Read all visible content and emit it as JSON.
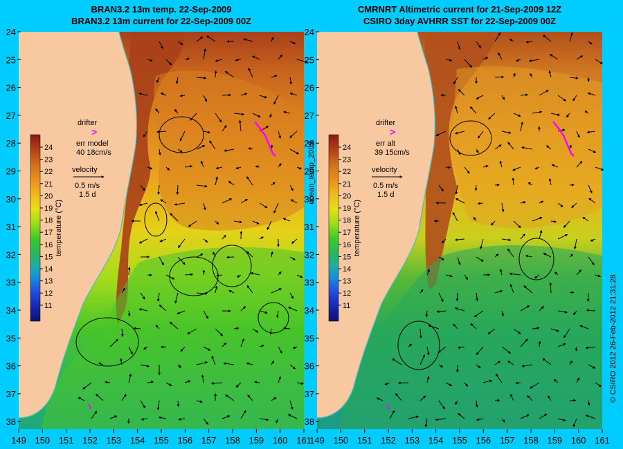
{
  "left_panel": {
    "title_line1": "BRAN3.2 13m temp. 22-Sep-2009",
    "title_line2": "BRAN3.2 13m current for 22-Sep-2009 00Z",
    "err_label": "err model",
    "err_value": "40 18cm/s"
  },
  "right_panel": {
    "title_line1": "CMRNRT Altimetric current for 21-Sep-2009 12Z",
    "title_line2": "CSIRO 3day AVHRR SST for 22-Sep-2009 00Z",
    "err_label": "err alt",
    "err_value": "39 15cm/s"
  },
  "legend": {
    "drifter_label": "drifter",
    "drifter_symbol": ">",
    "velocity_label": "velocity",
    "velocity_value": "0.5 m/s",
    "velocity_duration": "1.5 d",
    "colorbar_title": "temperature (°C)",
    "colorbar_ticks": [
      "24",
      "23",
      "22",
      "21",
      "20",
      "19",
      "18",
      "17",
      "16",
      "15",
      "14",
      "13",
      "12",
      "11"
    ]
  },
  "axes": {
    "lat_labels": [
      "24",
      "25",
      "26",
      "27",
      "28",
      "29",
      "30",
      "31",
      "32",
      "33",
      "34",
      "35",
      "36",
      "37",
      "38"
    ],
    "lon_labels": [
      "149",
      "150",
      "151",
      "152",
      "153",
      "154",
      "155",
      "156",
      "157",
      "158",
      "159",
      "160",
      "161"
    ]
  },
  "middle_label": "ocean_temp_2009",
  "credit": "© CSIRO 2012  26-Feb-2012 21:31:28",
  "colors": {
    "background": "#00ccff",
    "land": "#f8c8a0",
    "drifter": "#ff00ff",
    "coast": "#40c0c0"
  }
}
